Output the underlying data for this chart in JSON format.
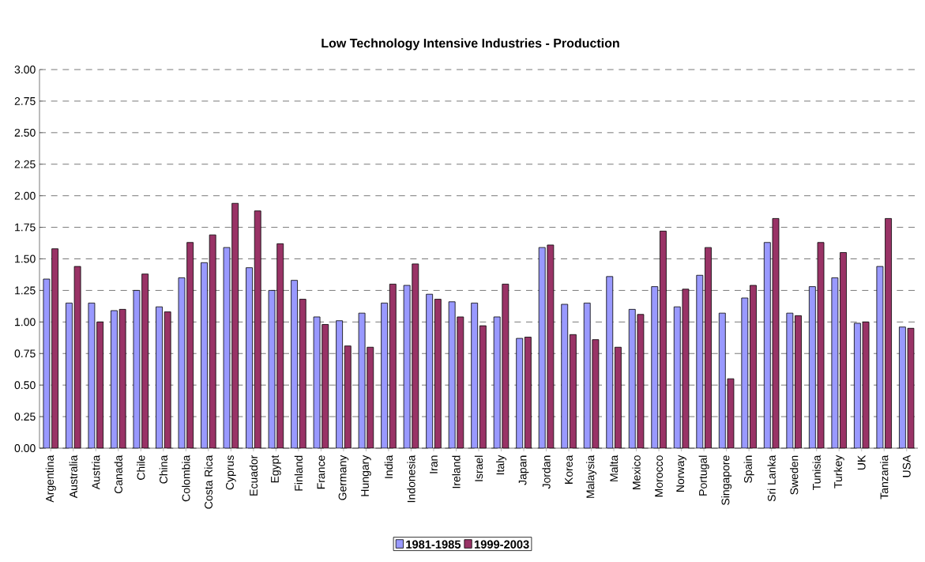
{
  "chart_data": {
    "type": "bar",
    "title": "Low Technology Intensive Industries - Production",
    "categories": [
      "Argentina",
      "Australia",
      "Austria",
      "Canada",
      "Chile",
      "China",
      "Colombia",
      "Costa Rica",
      "Cyprus",
      "Ecuador",
      "Egypt",
      "Finland",
      "France",
      "Germany",
      "Hungary",
      "India",
      "Indonesia",
      "Iran",
      "Ireland",
      "Israel",
      "Italy",
      "Japan",
      "Jordan",
      "Korea",
      "Malaysia",
      "Malta",
      "Mexico",
      "Morocco",
      "Norway",
      "Portugal",
      "Singapore",
      "Spain",
      "Sri Lanka",
      "Sweden",
      "Tunisia",
      "Turkey",
      "UK",
      "Tanzania",
      "USA"
    ],
    "series": [
      {
        "name": "1981-1985",
        "color": "#9999ff",
        "values": [
          1.34,
          1.15,
          1.15,
          1.09,
          1.25,
          1.12,
          1.35,
          1.47,
          1.59,
          1.43,
          1.25,
          1.33,
          1.04,
          1.01,
          1.07,
          1.15,
          1.29,
          1.22,
          1.16,
          1.15,
          1.04,
          0.87,
          1.59,
          1.14,
          1.15,
          1.36,
          1.1,
          1.28,
          1.12,
          1.37,
          1.07,
          1.19,
          1.63,
          1.07,
          1.28,
          1.35,
          0.99,
          1.44,
          0.96
        ]
      },
      {
        "name": "1999-2003",
        "color": "#993366",
        "values": [
          1.58,
          1.44,
          1.0,
          1.1,
          1.38,
          1.08,
          1.63,
          1.69,
          1.94,
          1.88,
          1.62,
          1.18,
          0.98,
          0.81,
          0.8,
          1.3,
          1.46,
          1.18,
          1.04,
          0.97,
          1.3,
          0.88,
          1.61,
          0.9,
          0.86,
          0.8,
          1.06,
          1.72,
          1.26,
          1.59,
          0.55,
          1.29,
          1.82,
          1.05,
          1.63,
          1.55,
          1.0,
          1.82,
          0.95
        ]
      }
    ],
    "ylim": [
      0,
      3
    ],
    "yticks": [
      {
        "value": 0,
        "label": "0.00"
      },
      {
        "value": 0.25,
        "label": "0.25"
      },
      {
        "value": 0.5,
        "label": "0.50"
      },
      {
        "value": 0.75,
        "label": "0.75"
      },
      {
        "value": 1,
        "label": "1.00"
      },
      {
        "value": 1.25,
        "label": "1.25"
      },
      {
        "value": 1.5,
        "label": "1.50"
      },
      {
        "value": 1.75,
        "label": "1.75"
      },
      {
        "value": 2,
        "label": "2.00"
      },
      {
        "value": 2.25,
        "label": "2.25"
      },
      {
        "value": 2.5,
        "label": "2.50"
      },
      {
        "value": 2.75,
        "label": "2.75"
      },
      {
        "value": 3,
        "label": "3.00"
      }
    ],
    "grid": "y",
    "legend": "bottom"
  }
}
